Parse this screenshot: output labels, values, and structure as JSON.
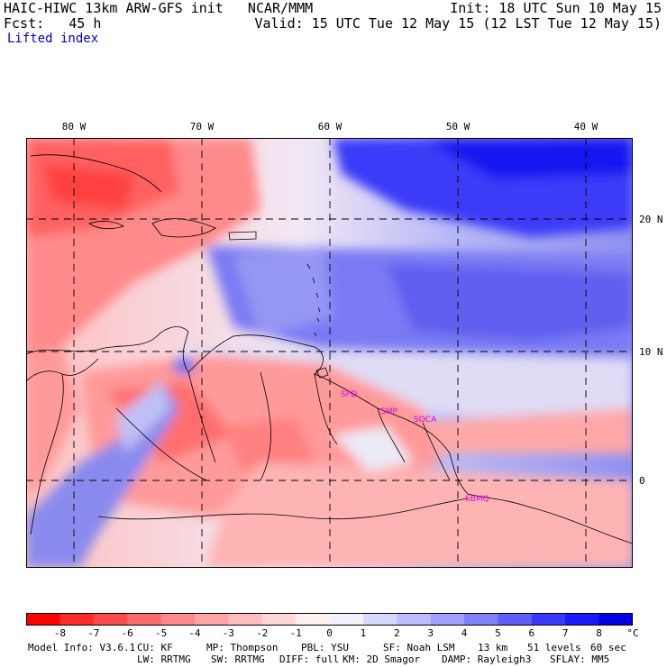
{
  "header": {
    "left_line1": "HAIC-HIWC 13km ARW-GFS init   NCAR/MMM",
    "left_line2": "Fcst:   45 h",
    "field": "Lifted index",
    "init": "Init: 18 UTC Sun 10 May 15",
    "valid": "Valid: 15 UTC Tue 12 May 15 (12 LST Tue 12 May 15)"
  },
  "map": {
    "lon_labels": [
      "80 W",
      "70 W",
      "60 W",
      "50 W",
      "40 W"
    ],
    "lat_labels": [
      "20 N",
      "10 N",
      "0"
    ],
    "stations": [
      "SPD",
      "SMP",
      "SOCA",
      "SBMQ"
    ]
  },
  "colorbar": {
    "ticks": [
      "-8",
      "-7",
      "-6",
      "-5",
      "-4",
      "-3",
      "-2",
      "-1",
      "0",
      "1",
      "2",
      "3",
      "4",
      "5",
      "6",
      "7",
      "8"
    ],
    "unit": "°C",
    "colors": [
      "#ff0000",
      "#ff2a2a",
      "#ff4a4a",
      "#ff6a6a",
      "#ff8888",
      "#ffa4a4",
      "#ffbdbd",
      "#ffd7d7",
      "#fff0f0",
      "#f2f2ff",
      "#d8d8ff",
      "#bdbdff",
      "#a0a0ff",
      "#8080ff",
      "#5e5eff",
      "#3a3aff",
      "#1a1aff",
      "#0000e6"
    ]
  },
  "footer": {
    "line1": {
      "model_info": "Model Info: V3.6.1",
      "cu": "CU: KF",
      "mp": "MP: Thompson",
      "pbl": "PBL: YSU",
      "sf": "SF: Noah LSM",
      "res": "13 km",
      "levels": "51 levels",
      "dt": "60 sec"
    },
    "line2": {
      "lw": "LW: RRTMG",
      "sw": "SW: RRTMG",
      "diff": "DIFF: full",
      "km": "KM: 2D Smagor",
      "damp": "DAMP: Rayleigh3",
      "sflay": "SFLAY: MM5"
    }
  }
}
